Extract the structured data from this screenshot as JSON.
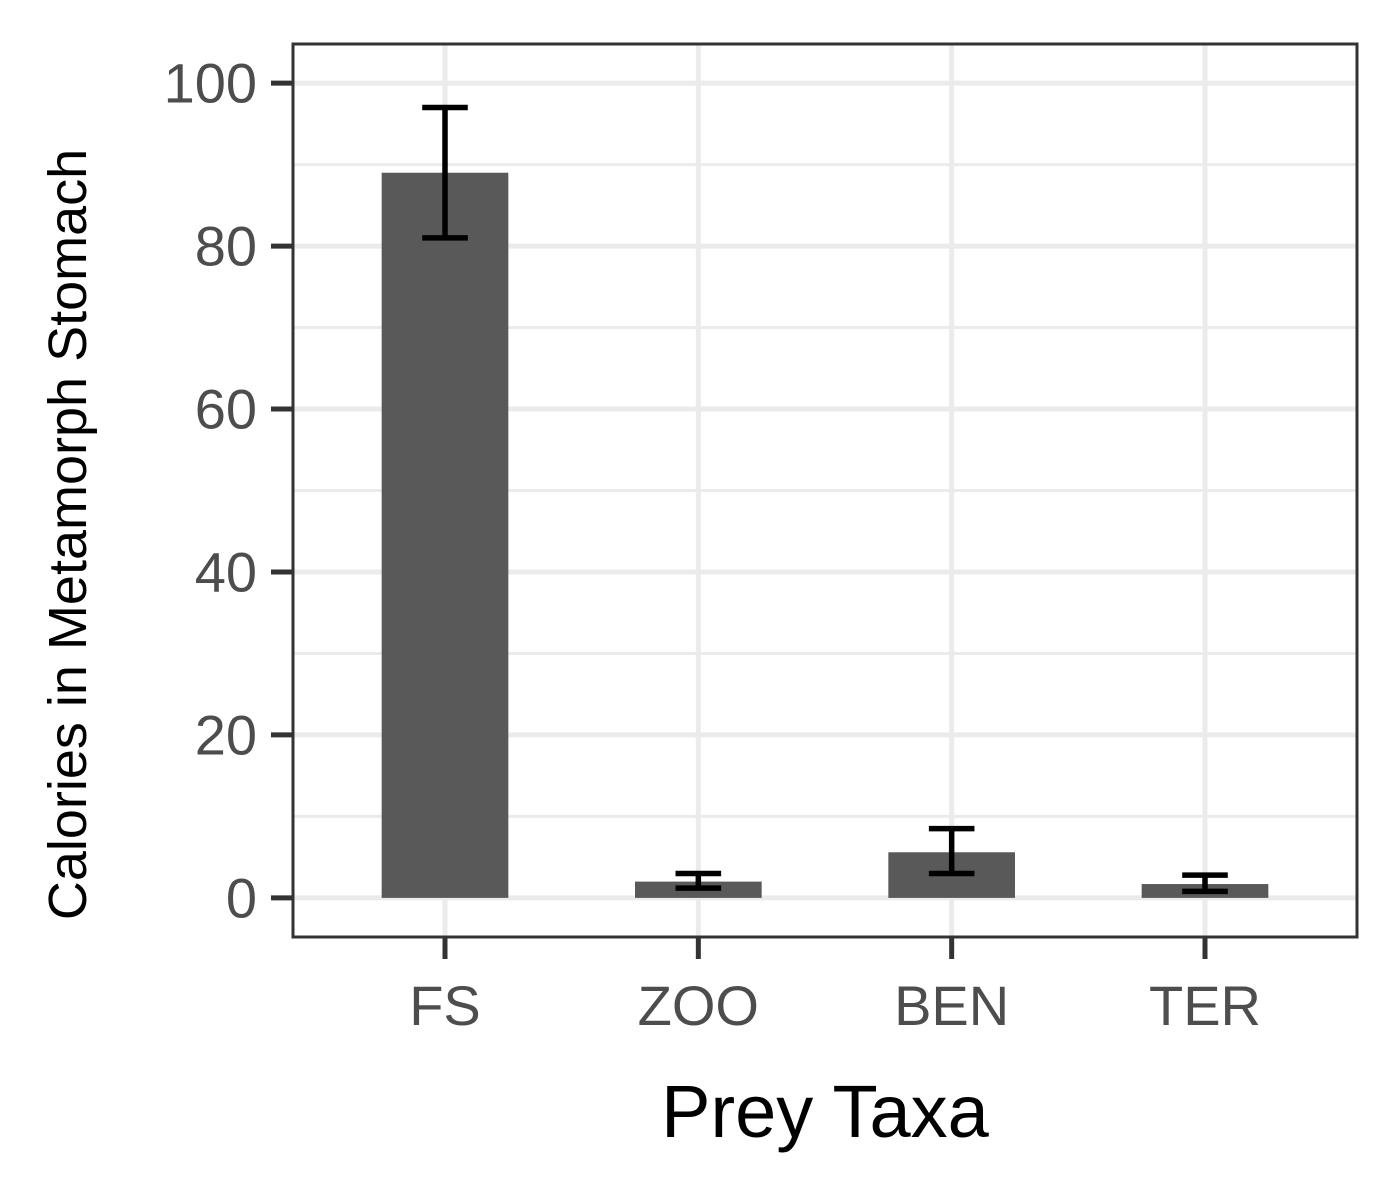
{
  "chart_data": {
    "type": "bar",
    "categories": [
      "FS",
      "ZOO",
      "BEN",
      "TER"
    ],
    "values": [
      89,
      2,
      5.6,
      1.7
    ],
    "error_bars": [
      {
        "lower": 81,
        "upper": 97
      },
      {
        "lower": 1.2,
        "upper": 3
      },
      {
        "lower": 3,
        "upper": 8.5
      },
      {
        "lower": 0.8,
        "upper": 2.8
      }
    ],
    "title": "",
    "xlabel": "Prey Taxa",
    "ylabel": "Calories in Metamorph Stomach",
    "ylim": [
      -4.8,
      104.8
    ],
    "yticks": [
      0,
      20,
      40,
      60,
      80,
      100
    ],
    "ytick_labels": [
      "0",
      "20",
      "40",
      "60",
      "80",
      "100"
    ],
    "grid": true,
    "bar_color": "#595959",
    "error_bar_color": "#000000",
    "grid_color": "#ebebeb",
    "panel_border_color": "#333333"
  }
}
